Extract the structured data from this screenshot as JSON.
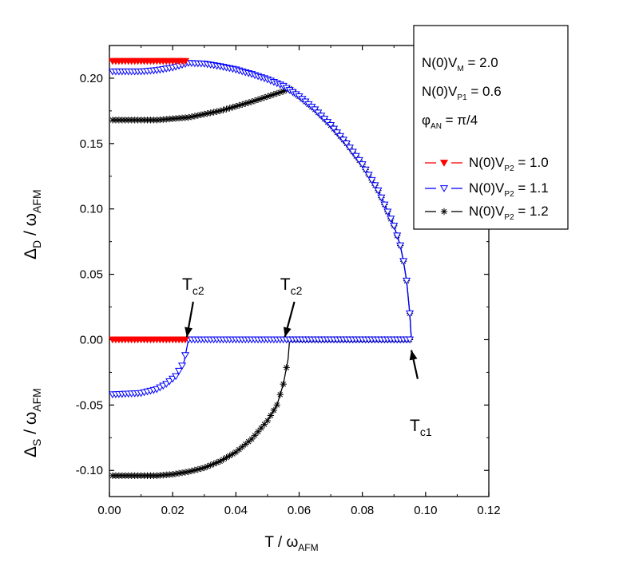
{
  "chart_data": {
    "type": "line",
    "xaxis": {
      "label": "T / ω",
      "label_sub": "AFM",
      "range": [
        0.0,
        0.12
      ],
      "ticks": [
        0.0,
        0.02,
        0.04,
        0.06,
        0.08,
        0.1,
        0.12
      ],
      "tick_labels": [
        "0.00",
        "0.02",
        "0.04",
        "0.06",
        "0.08",
        "0.10",
        "0.12"
      ]
    },
    "yaxis": {
      "range": [
        -0.12,
        0.225
      ],
      "ticks": [
        -0.1,
        -0.05,
        0.0,
        0.05,
        0.1,
        0.15,
        0.2
      ],
      "tick_labels": [
        "-0.10",
        "-0.05",
        "0.00",
        "0.05",
        "0.10",
        "0.15",
        "0.20"
      ],
      "label_upper": "Δ",
      "label_upper_sub": "D",
      "label_upper_rest": " / ω",
      "label_upper_rest_sub": "AFM",
      "label_lower": "Δ",
      "label_lower_sub": "S",
      "label_lower_rest": " / ω",
      "label_lower_rest_sub": "AFM"
    },
    "params": [
      {
        "pre": "N(0)V",
        "sub": "M",
        "post": " = 2.0"
      },
      {
        "pre": "N(0)V",
        "sub": "P1",
        "post": " = 0.6"
      },
      {
        "pre": "φ",
        "sub": "AN",
        "post": " =  π/4"
      }
    ],
    "series": [
      {
        "legend_pre": "N(0)V",
        "legend_sub": "P2",
        "legend_post": " = 1.0",
        "color": "#ff0000",
        "marker": "filled-triangle-down",
        "delta_d": [
          [
            0.001,
            0.213
          ],
          [
            0.024,
            0.213
          ]
        ],
        "delta_s": [
          [
            0.001,
            0.0
          ],
          [
            0.024,
            0.0
          ]
        ]
      },
      {
        "legend_pre": "N(0)V",
        "legend_sub": "P2",
        "legend_post": " = 1.1",
        "color": "#0000ff",
        "marker": "open-triangle-down",
        "delta_d": [
          [
            0.001,
            0.205
          ],
          [
            0.01,
            0.205
          ],
          [
            0.015,
            0.206
          ],
          [
            0.02,
            0.208
          ],
          [
            0.025,
            0.2115
          ],
          [
            0.03,
            0.211
          ],
          [
            0.035,
            0.209
          ],
          [
            0.04,
            0.2065
          ],
          [
            0.045,
            0.203
          ],
          [
            0.05,
            0.199
          ],
          [
            0.055,
            0.194
          ],
          [
            0.06,
            0.186
          ],
          [
            0.065,
            0.176
          ],
          [
            0.07,
            0.164
          ],
          [
            0.075,
            0.15
          ],
          [
            0.08,
            0.134
          ],
          [
            0.085,
            0.114
          ],
          [
            0.09,
            0.087
          ],
          [
            0.092,
            0.072
          ],
          [
            0.093,
            0.06
          ],
          [
            0.094,
            0.045
          ],
          [
            0.095,
            0.02
          ],
          [
            0.0955,
            0.0
          ]
        ],
        "delta_s": [
          [
            0.001,
            -0.042
          ],
          [
            0.01,
            -0.041
          ],
          [
            0.015,
            -0.038
          ],
          [
            0.018,
            -0.034
          ],
          [
            0.021,
            -0.028
          ],
          [
            0.0235,
            -0.018
          ],
          [
            0.025,
            0.0
          ],
          [
            0.0955,
            0.0
          ]
        ]
      },
      {
        "legend_pre": "N(0)V",
        "legend_sub": "P2",
        "legend_post": " = 1.2",
        "color": "#000000",
        "marker": "asterisk",
        "delta_d": [
          [
            0.001,
            0.168
          ],
          [
            0.015,
            0.168
          ],
          [
            0.025,
            0.17
          ],
          [
            0.035,
            0.175
          ],
          [
            0.045,
            0.182
          ],
          [
            0.05,
            0.186
          ],
          [
            0.055,
            0.19
          ],
          [
            0.057,
            0.192
          ],
          [
            0.06,
            0.186
          ],
          [
            0.065,
            0.176
          ],
          [
            0.07,
            0.164
          ],
          [
            0.075,
            0.15
          ],
          [
            0.08,
            0.134
          ],
          [
            0.085,
            0.114
          ],
          [
            0.09,
            0.087
          ],
          [
            0.092,
            0.072
          ],
          [
            0.093,
            0.06
          ],
          [
            0.094,
            0.045
          ],
          [
            0.095,
            0.02
          ],
          [
            0.0955,
            0.0
          ]
        ],
        "delta_s": [
          [
            0.001,
            -0.104
          ],
          [
            0.015,
            -0.104
          ],
          [
            0.02,
            -0.103
          ],
          [
            0.025,
            -0.101
          ],
          [
            0.03,
            -0.098
          ],
          [
            0.035,
            -0.093
          ],
          [
            0.04,
            -0.086
          ],
          [
            0.045,
            -0.076
          ],
          [
            0.05,
            -0.062
          ],
          [
            0.053,
            -0.05
          ],
          [
            0.055,
            -0.034
          ],
          [
            0.0565,
            -0.015
          ],
          [
            0.057,
            0.0
          ],
          [
            0.0955,
            0.0
          ]
        ]
      }
    ],
    "annotations": [
      {
        "main": "T",
        "sub": "c2",
        "x": 0.023,
        "y": 0.038,
        "ax": 0.0265,
        "ay": 0.029,
        "tx": 0.0245,
        "ty": 0.002
      },
      {
        "main": "T",
        "sub": "c2",
        "x": 0.054,
        "y": 0.038,
        "ax": 0.0585,
        "ay": 0.029,
        "tx": 0.0555,
        "ty": 0.002
      },
      {
        "main": "T",
        "sub": "c1",
        "x": 0.095,
        "y": -0.07,
        "ax": 0.0975,
        "ay": -0.03,
        "tx": 0.0955,
        "ty": -0.008
      }
    ]
  }
}
